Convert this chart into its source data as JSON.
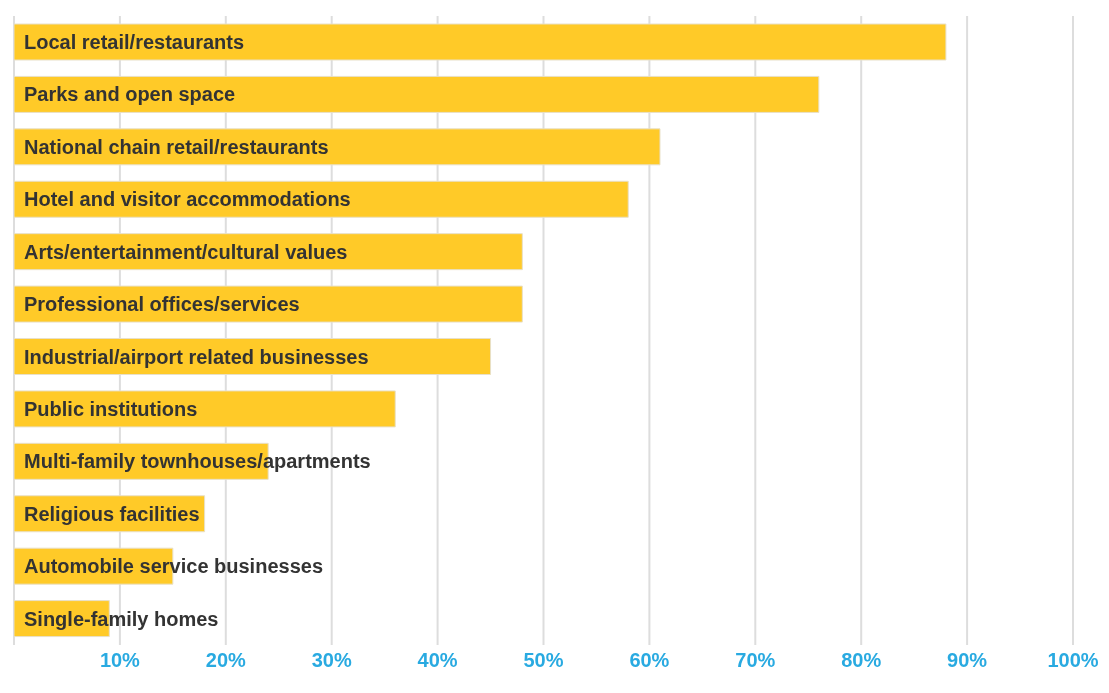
{
  "chart_data": {
    "type": "bar",
    "orientation": "horizontal",
    "categories": [
      "Local retail/restaurants",
      "Parks and open space",
      "National chain retail/restaurants",
      "Hotel and visitor accommodations",
      "Arts/entertainment/cultural values",
      "Professional offices/services",
      "Industrial/airport related businesses",
      "Public institutions",
      "Multi-family townhouses/apartments",
      "Religious facilities",
      "Automobile service businesses",
      "Single-family homes"
    ],
    "values": [
      88,
      76,
      61,
      58,
      48,
      48,
      45,
      36,
      24,
      18,
      15,
      9
    ],
    "color": "#ffca28",
    "xlim": [
      0,
      100
    ],
    "xticks": [
      {
        "value": 10,
        "label": "10%"
      },
      {
        "value": 20,
        "label": "20%"
      },
      {
        "value": 30,
        "label": "30%"
      },
      {
        "value": 40,
        "label": "40%"
      },
      {
        "value": 50,
        "label": "50%"
      },
      {
        "value": 60,
        "label": "60%"
      },
      {
        "value": 70,
        "label": "70%"
      },
      {
        "value": 80,
        "label": "80%"
      },
      {
        "value": 90,
        "label": "90%"
      },
      {
        "value": 100,
        "label": "100%"
      }
    ],
    "grid": "x"
  }
}
